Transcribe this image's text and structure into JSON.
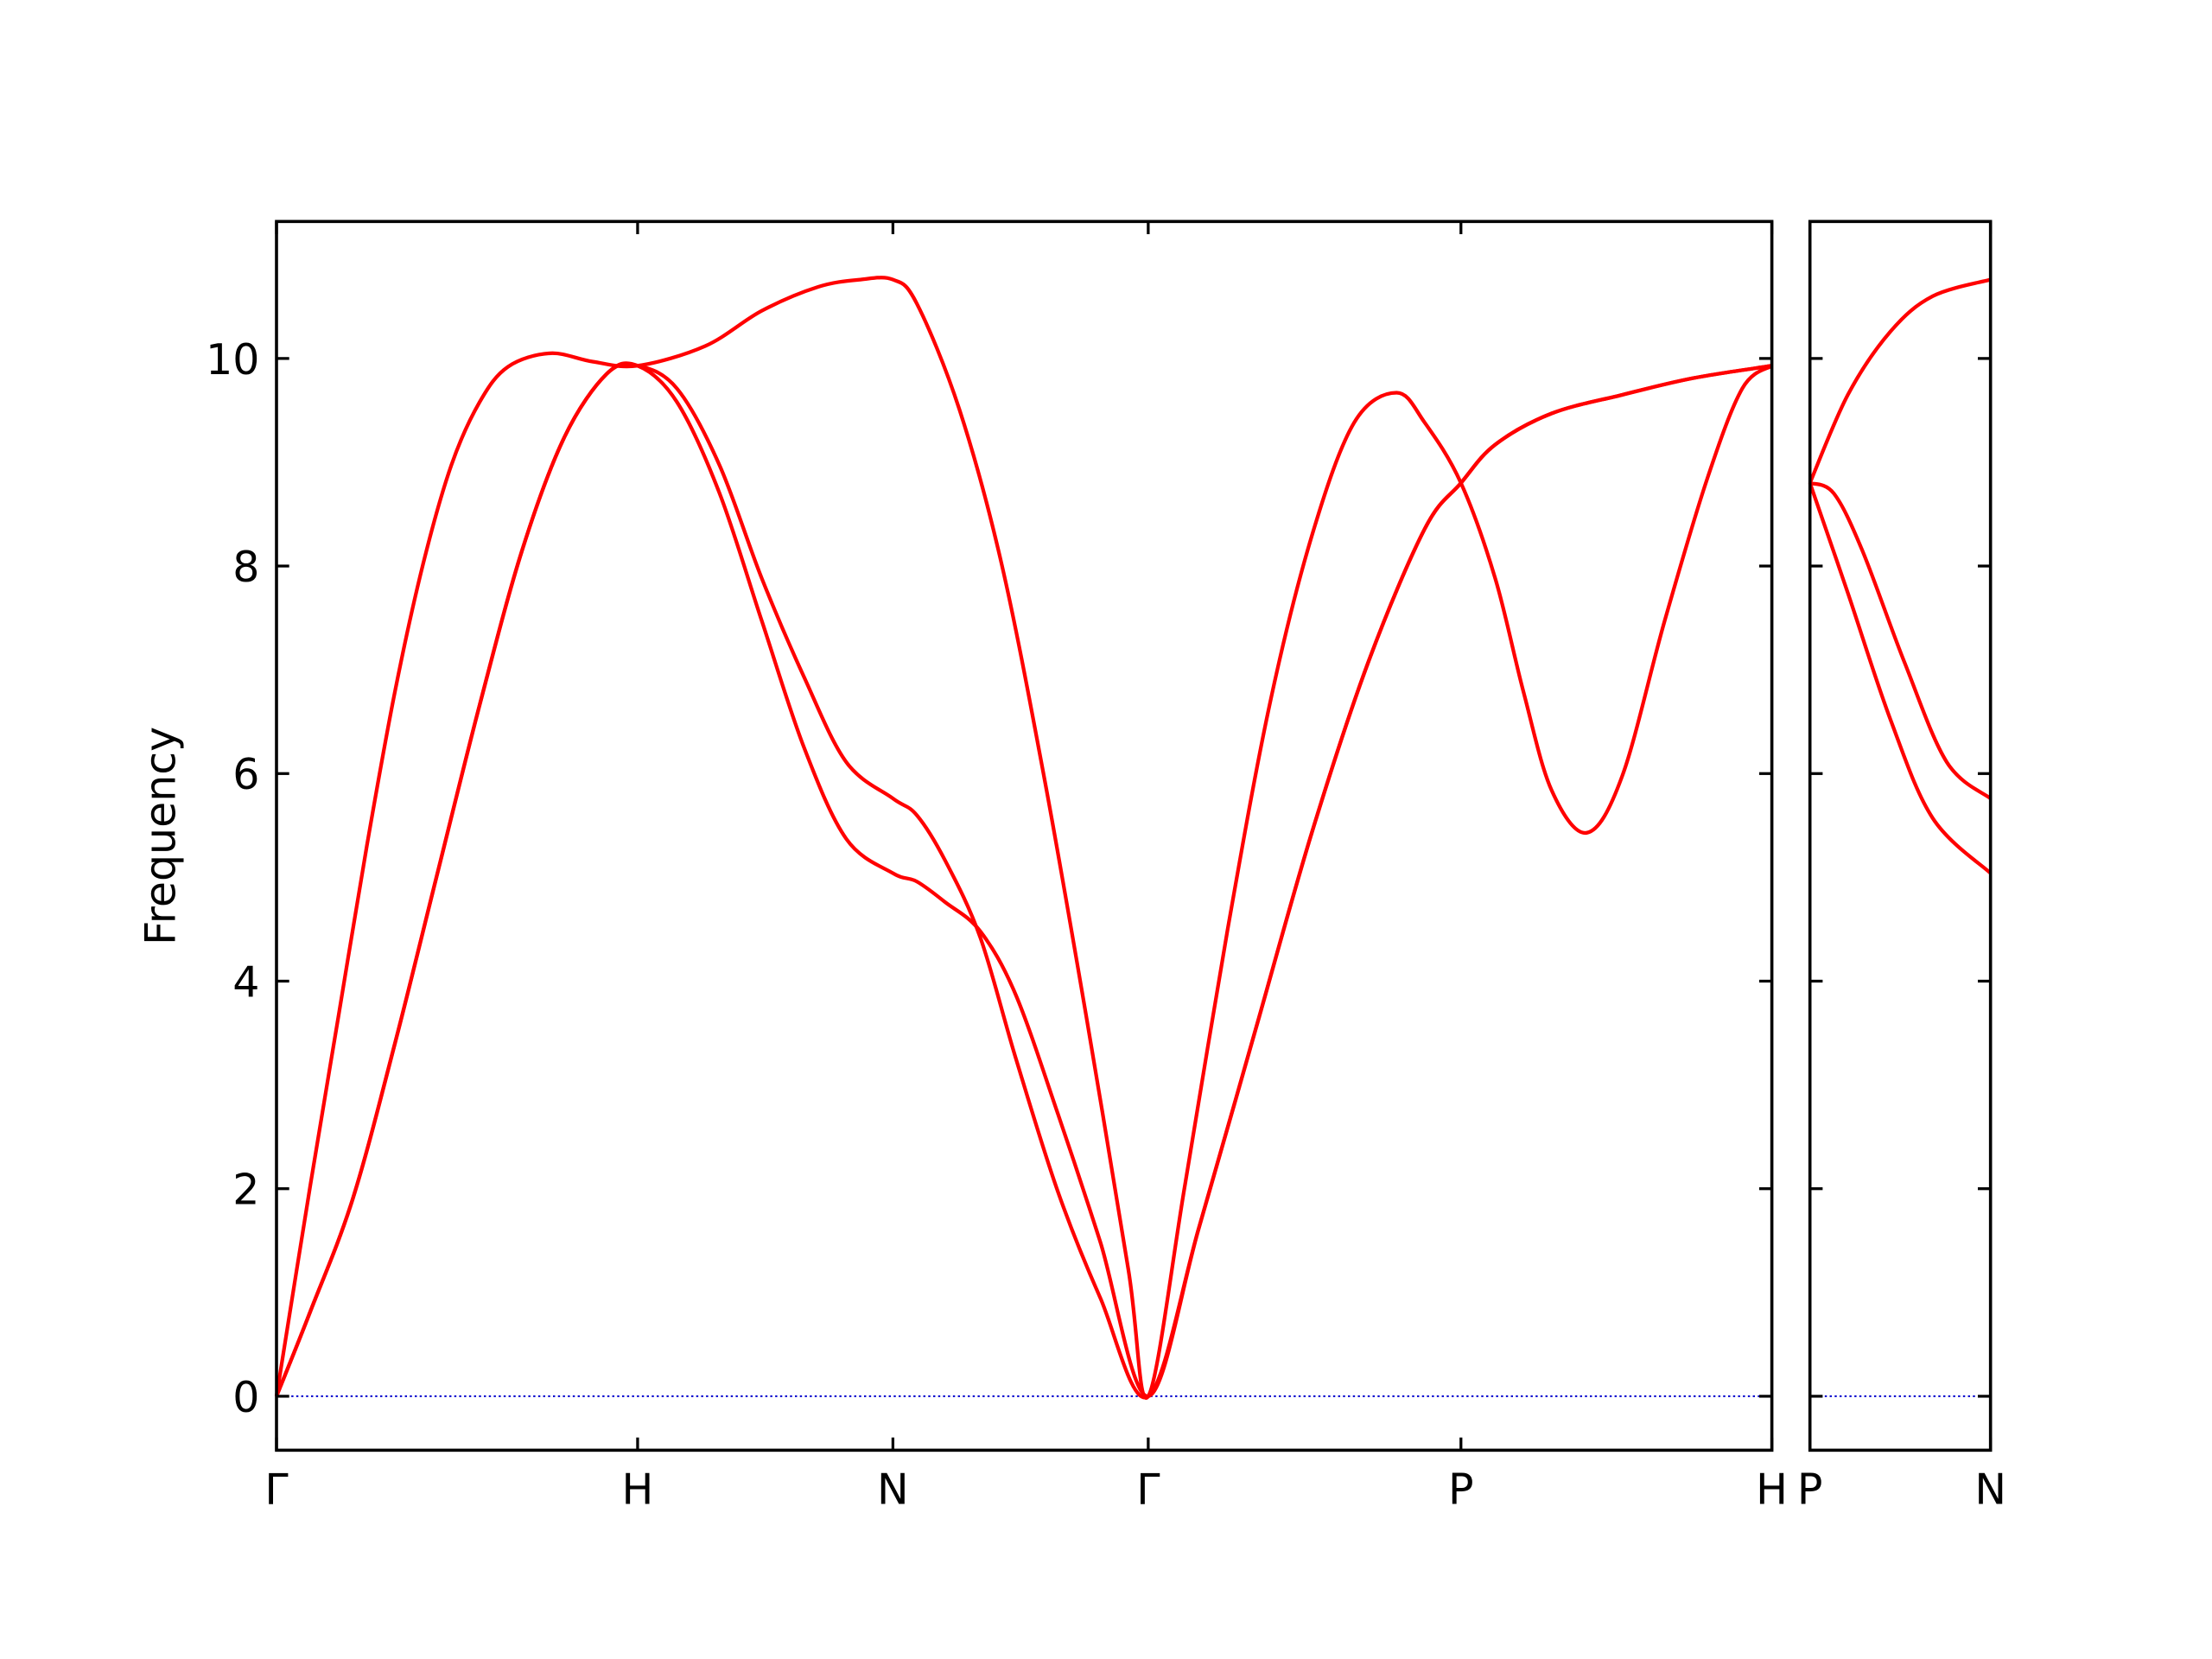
{
  "chart_data": [
    {
      "type": "line",
      "y_label": "Frequency",
      "xlim": [
        0,
        4.141
      ],
      "ylim": [
        -0.52,
        11.32
      ],
      "xticks": [
        {
          "value": 0,
          "label": "Γ"
        },
        {
          "value": 1,
          "label": "H"
        },
        {
          "value": 1.707,
          "label": "N"
        },
        {
          "value": 2.414,
          "label": "Γ"
        },
        {
          "value": 3.28,
          "label": "P"
        },
        {
          "value": 4.141,
          "label": "H"
        }
      ],
      "yticks": [
        0,
        2,
        4,
        6,
        8,
        10
      ],
      "ytick_labels": true,
      "hline": 0,
      "hline_color": "#0000cc",
      "series": [
        {
          "color": "#ff0000",
          "x": [
            0,
            0.094,
            0.211,
            0.328,
            0.445,
            0.5625,
            0.68,
            0.797,
            0.914,
            1,
            1.109,
            1.227,
            1.344,
            1.461,
            1.578,
            1.707,
            1.773,
            1.852,
            1.949,
            2.047,
            2.164,
            2.281,
            2.414,
            2.555,
            2.711,
            2.867,
            3.023,
            3.18,
            3.28,
            3.375,
            3.531,
            3.727,
            3.922,
            4.141
          ],
          "values": [
            0,
            0.82,
            1.9,
            3.4,
            5.03,
            6.66,
            8.15,
            9.24,
            9.85,
            9.93,
            9.58,
            8.7,
            7.47,
            6.25,
            5.37,
            5.04,
            4.96,
            4.76,
            4.48,
            3.87,
            2.72,
            1.49,
            0,
            1.63,
            3.53,
            5.43,
            7.07,
            8.36,
            8.8,
            9.17,
            9.47,
            9.65,
            9.81,
            9.93
          ]
        },
        {
          "color": "#ff0000",
          "x": [
            0,
            0.094,
            0.211,
            0.328,
            0.445,
            0.5625,
            0.68,
            0.797,
            0.914,
            1,
            1.109,
            1.227,
            1.344,
            1.461,
            1.578,
            1.707,
            1.773,
            1.852,
            1.949,
            2.047,
            2.164,
            2.281,
            2.414,
            2.555,
            2.711,
            2.867,
            3.023,
            3.18,
            3.28,
            3.375,
            3.531,
            3.727,
            3.922,
            4.141
          ],
          "values": [
            0,
            0.82,
            1.9,
            3.4,
            5.03,
            6.66,
            8.15,
            9.24,
            9.85,
            9.93,
            9.71,
            8.97,
            7.88,
            6.93,
            6.11,
            5.76,
            5.6,
            5.16,
            4.42,
            3.26,
            1.97,
            0.95,
            0,
            1.63,
            3.53,
            5.43,
            7.07,
            8.36,
            8.8,
            9.17,
            9.47,
            9.65,
            9.81,
            9.93
          ]
        },
        {
          "color": "#ff0000",
          "x": [
            0,
            0.094,
            0.172,
            0.25,
            0.328,
            0.406,
            0.484,
            0.5625,
            0.641,
            0.758,
            0.875,
            1,
            1.1875,
            1.344,
            1.5,
            1.617,
            1.707,
            1.773,
            1.891,
            2.008,
            2.125,
            2.242,
            2.359,
            2.414,
            2.516,
            2.633,
            2.75,
            2.867,
            2.984,
            3.102,
            3.18,
            3.28,
            3.375,
            3.453,
            3.531,
            3.629,
            3.727,
            3.844,
            3.961,
            4.059,
            4.141
          ],
          "values": [
            0,
            2.04,
            3.67,
            5.3,
            6.79,
            8.02,
            8.97,
            9.58,
            9.92,
            10.05,
            9.97,
            9.93,
            10.12,
            10.46,
            10.69,
            10.76,
            10.76,
            10.53,
            9.51,
            8.02,
            5.98,
            3.67,
            1.22,
            0,
            2.04,
            4.48,
            6.66,
            8.29,
            9.38,
            9.67,
            9.38,
            8.8,
            7.88,
            6.79,
            5.84,
            5.43,
            5.98,
            7.47,
            8.83,
            9.71,
            9.93
          ]
        }
      ]
    },
    {
      "type": "line",
      "xlim": [
        0,
        0.5
      ],
      "ylim": [
        -0.52,
        11.32
      ],
      "xticks": [
        {
          "value": 0,
          "label": "P"
        },
        {
          "value": 0.5,
          "label": "N"
        }
      ],
      "yticks": [
        0,
        2,
        4,
        6,
        8,
        10
      ],
      "ytick_labels": false,
      "hline": 0,
      "hline_color": "#0000cc",
      "series": [
        {
          "color": "#ff0000",
          "x": [
            0,
            0.105,
            0.223,
            0.34,
            0.5
          ],
          "values": [
            8.8,
            7.74,
            6.52,
            5.57,
            5.04
          ]
        },
        {
          "color": "#ff0000",
          "x": [
            0,
            0.066,
            0.145,
            0.262,
            0.379,
            0.5
          ],
          "values": [
            8.8,
            8.7,
            8.15,
            7.07,
            6.11,
            5.76
          ]
        },
        {
          "color": "#ff0000",
          "x": [
            0,
            0.105,
            0.223,
            0.34,
            0.5
          ],
          "values": [
            8.8,
            9.65,
            10.26,
            10.6,
            10.76
          ]
        }
      ]
    }
  ]
}
